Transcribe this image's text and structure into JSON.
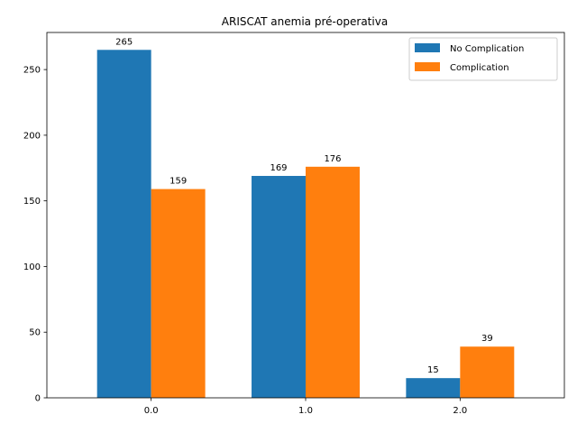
{
  "chart_data": {
    "type": "bar",
    "title": "ARISCAT anemia pré-operativa",
    "xlabel": "",
    "ylabel": "",
    "categories": [
      "0.0",
      "1.0",
      "2.0"
    ],
    "series": [
      {
        "name": "No Complication",
        "color": "#1f77b4",
        "values": [
          265,
          169,
          15
        ]
      },
      {
        "name": "Complication",
        "color": "#ff7f0e",
        "values": [
          159,
          176,
          39
        ]
      }
    ],
    "ylim": [
      0,
      278.25
    ],
    "yticks": [
      "0",
      "50",
      "100",
      "150",
      "200",
      "250"
    ],
    "grid": false,
    "legend_position": "top-right"
  }
}
